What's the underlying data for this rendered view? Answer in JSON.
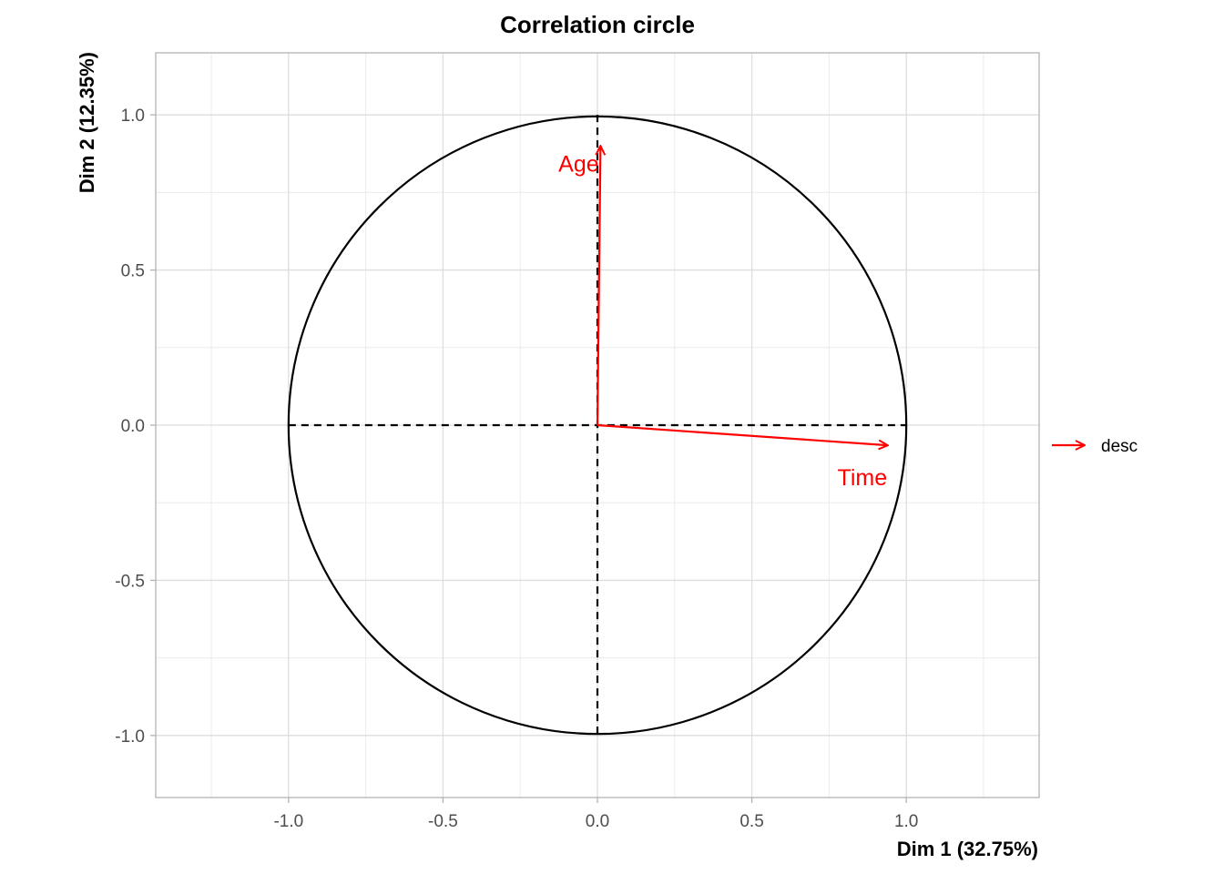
{
  "chart_data": {
    "type": "scatter",
    "title": "Correlation circle",
    "xlabel": "Dim 1 (32.75%)",
    "ylabel": "Dim 2 (12.35%)",
    "xlim": [
      -1.43,
      1.43
    ],
    "ylim": [
      -1.2,
      1.2
    ],
    "x_ticks": [
      -1.0,
      -0.5,
      0.0,
      0.5,
      1.0
    ],
    "x_tick_labels": [
      "-1.0",
      "-0.5",
      "0.0",
      "0.5",
      "1.0"
    ],
    "y_ticks": [
      -1.0,
      -0.5,
      0.0,
      0.5,
      1.0
    ],
    "y_tick_labels": [
      "-1.0",
      "-0.5",
      "0.0",
      "0.5",
      "1.0"
    ],
    "grid": true,
    "unit_circle": true,
    "reference_lines": {
      "x": 0,
      "y": 0,
      "style": "dashed"
    },
    "arrow_color": "#ff0000",
    "variables": [
      {
        "name": "Age",
        "x": 0.01,
        "y": 0.9
      },
      {
        "name": "Time",
        "x": 0.94,
        "y": -0.065
      }
    ],
    "legend": {
      "placement": "right",
      "label": "desc"
    }
  }
}
